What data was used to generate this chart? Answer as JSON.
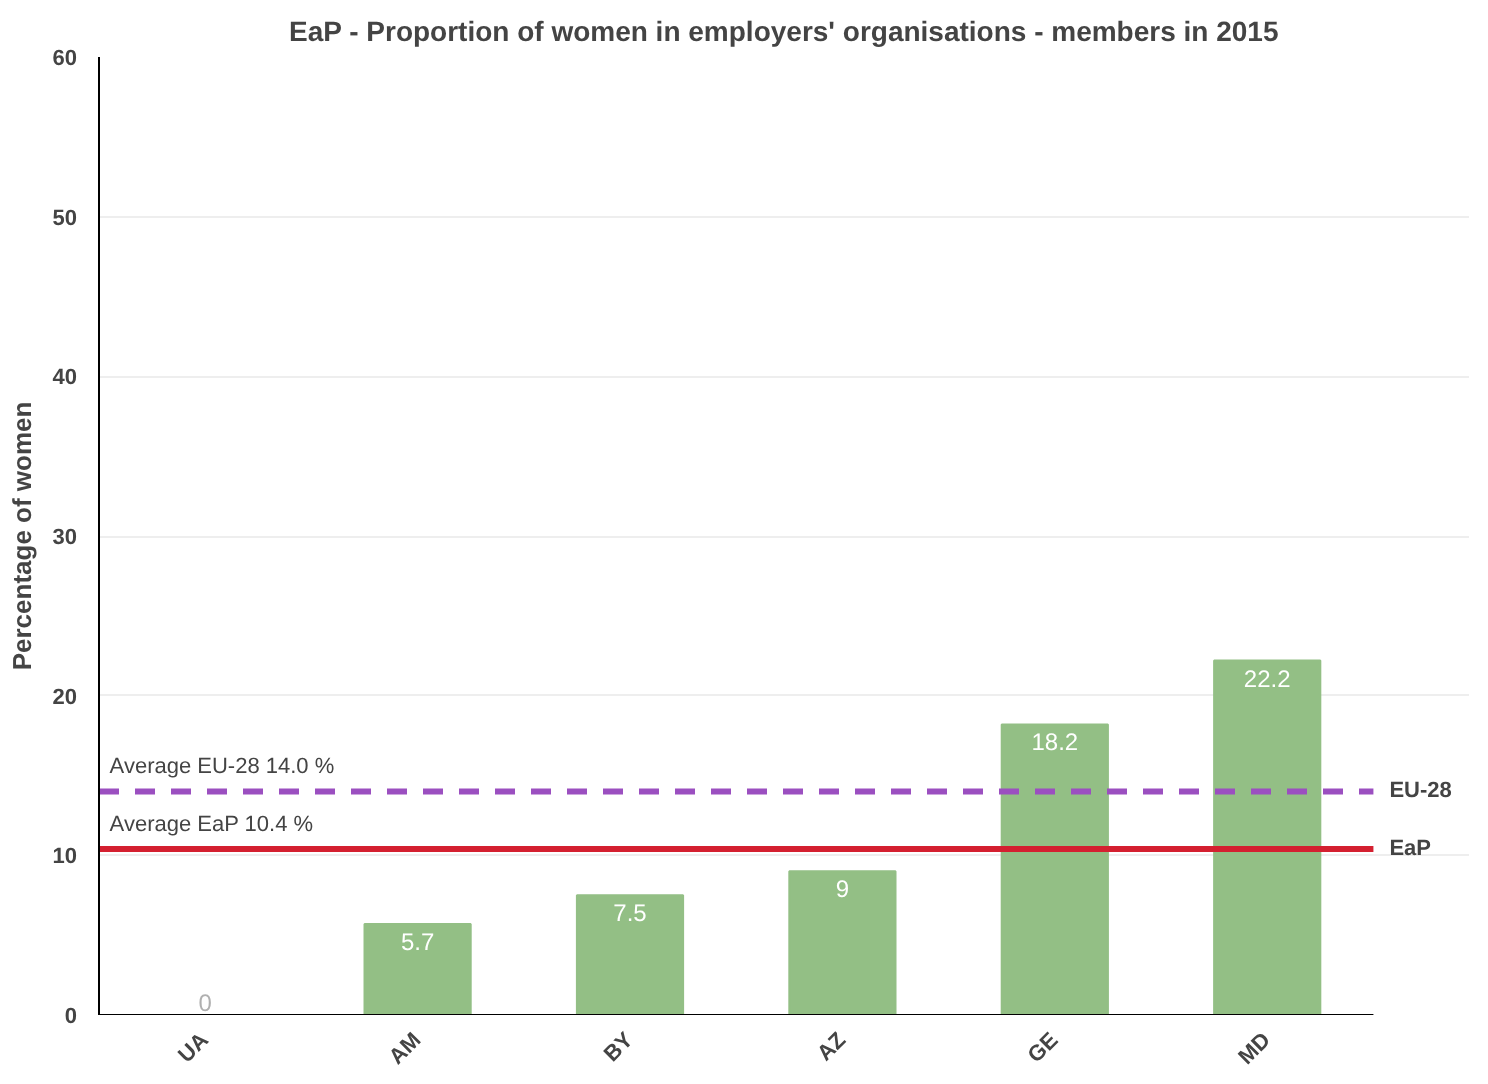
{
  "chart_data": {
    "type": "bar",
    "title": "EaP - Proportion of women in employers' organisations - members in 2015",
    "ylabel": "Percentage of women",
    "categories": [
      "UA",
      "AM",
      "BY",
      "AZ",
      "GE",
      "MD"
    ],
    "values": [
      0,
      5.7,
      7.5,
      9,
      18.2,
      22.2
    ],
    "color": "#93bf85",
    "data_labels": true,
    "ylim": [
      0,
      60
    ],
    "yticks": [
      0,
      10,
      20,
      30,
      40,
      50,
      60
    ],
    "grid": "y",
    "ref_lines": [
      {
        "axis": "y",
        "value": 14.0,
        "label": "EU-28",
        "color": "#9b4fc0",
        "line_style": "dashed"
      },
      {
        "axis": "y",
        "value": 10.4,
        "label": "EaP",
        "color": "#d42030",
        "line_style": "solid"
      }
    ],
    "annotations": [
      {
        "text": "Average EU-28  14.0 %",
        "y": 14.0
      },
      {
        "text": "Average EaP  10.4 %",
        "y": 10.4
      }
    ]
  }
}
